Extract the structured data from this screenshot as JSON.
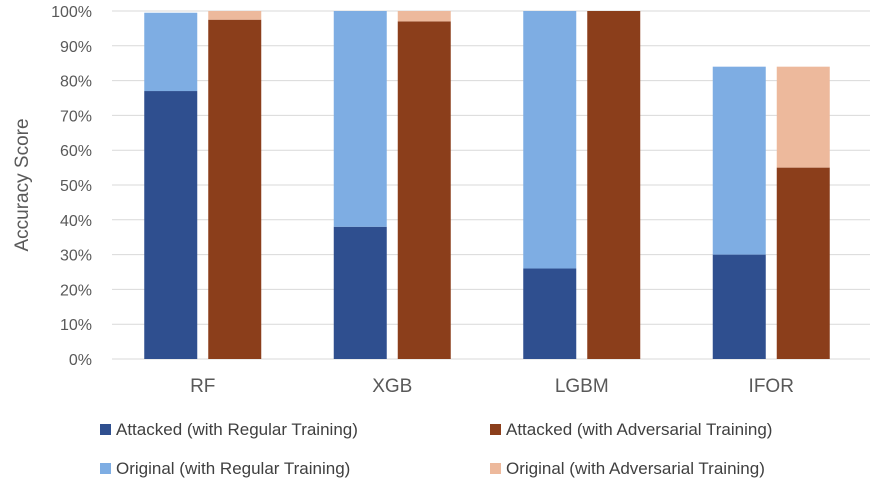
{
  "chart_data": {
    "type": "bar",
    "stacked": true,
    "ylabel": "Accuracy Score",
    "xlabel": "",
    "ylim": [
      0,
      100
    ],
    "y_unit": "%",
    "y_ticks": [
      "0%",
      "10%",
      "20%",
      "30%",
      "40%",
      "50%",
      "60%",
      "70%",
      "80%",
      "90%",
      "100%"
    ],
    "grid": true,
    "categories": [
      "RF",
      "XGB",
      "LGBM",
      "IFOR"
    ],
    "series": [
      {
        "name": "Attacked (with Regular Training)",
        "group": "regular",
        "color": "#2F4F8F",
        "values": [
          77,
          38,
          26,
          30
        ]
      },
      {
        "name": "Original (with Regular Training)",
        "group": "regular",
        "color": "#7EADE3",
        "values": [
          22.5,
          62,
          74,
          54
        ]
      },
      {
        "name": "Attacked (with Adversarial Training)",
        "group": "adversarial",
        "color": "#8B3E1B",
        "values": [
          97.5,
          97,
          100,
          55
        ]
      },
      {
        "name": "Original (with Adversarial Training)",
        "group": "adversarial",
        "color": "#EDB99C",
        "values": [
          2.5,
          3,
          0,
          29
        ]
      }
    ],
    "legend_position": "bottom"
  }
}
